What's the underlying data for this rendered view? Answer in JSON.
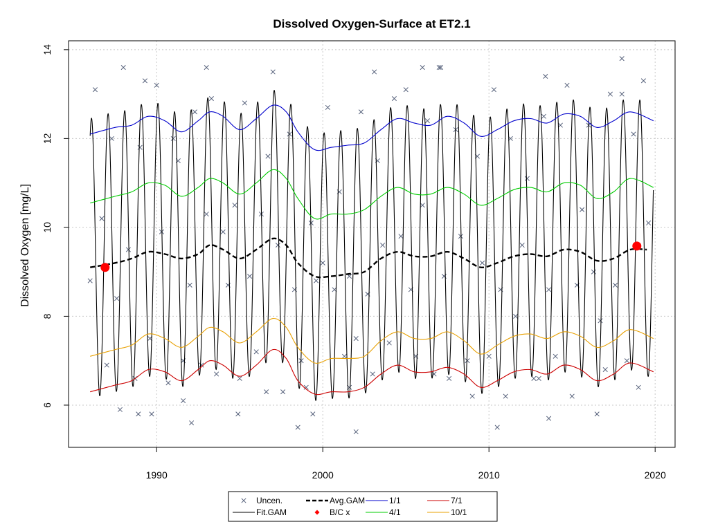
{
  "chart_data": {
    "type": "line",
    "title": "Dissolved Oxygen-Surface at ET2.1",
    "xlabel": "",
    "ylabel": "Dissolved Oxygen [mg/L]",
    "xlim": [
      1984.7,
      2021.2
    ],
    "ylim": [
      5.05,
      14.2
    ],
    "x_ticks": [
      1990,
      2000,
      2010,
      2020
    ],
    "y_ticks": [
      6,
      8,
      10,
      12,
      14
    ],
    "grid": true,
    "legend_position": "bottom-center",
    "legend": [
      {
        "label": "Uncen.",
        "key": "uncen",
        "symbol": "cross",
        "color": "#55607a"
      },
      {
        "label": "Fit.GAM",
        "key": "fit",
        "symbol": "line",
        "color": "#000000"
      },
      {
        "label": "Avg.GAM",
        "key": "avg",
        "symbol": "dashed",
        "color": "#000000"
      },
      {
        "label": "B/C x",
        "key": "bc",
        "symbol": "diamond",
        "color": "#ff0000"
      },
      {
        "label": "1/1",
        "key": "s1_1",
        "symbol": "line",
        "color": "#0000cc"
      },
      {
        "label": "4/1",
        "key": "s4_1",
        "symbol": "line",
        "color": "#00cc00"
      },
      {
        "label": "7/1",
        "key": "s7_1",
        "symbol": "line",
        "color": "#cc0000"
      },
      {
        "label": "10/1",
        "key": "s10_1",
        "symbol": "line",
        "color": "#e8a000"
      }
    ],
    "fit_gam": {
      "start": 1986.0,
      "end": 2019.9,
      "color": "#000000"
    },
    "avg_gam": {
      "color": "#000000",
      "x": [
        1986.0,
        1987.5,
        1988.5,
        1989.5,
        1990.5,
        1991.5,
        1992.5,
        1993.2,
        1994.0,
        1995.0,
        1996.0,
        1997.0,
        1997.8,
        1998.5,
        1999.5,
        2000.5,
        2001.5,
        2002.5,
        2003.5,
        2004.5,
        2005.5,
        2006.5,
        2007.5,
        2008.5,
        2009.5,
        2010.5,
        2011.5,
        2012.5,
        2013.5,
        2014.5,
        2015.5,
        2016.5,
        2017.5,
        2018.5,
        2019.5
      ],
      "y": [
        9.1,
        9.2,
        9.3,
        9.45,
        9.4,
        9.3,
        9.4,
        9.6,
        9.5,
        9.3,
        9.5,
        9.75,
        9.6,
        9.2,
        8.9,
        8.9,
        8.95,
        9.0,
        9.3,
        9.45,
        9.35,
        9.35,
        9.45,
        9.3,
        9.1,
        9.2,
        9.35,
        9.4,
        9.35,
        9.5,
        9.45,
        9.25,
        9.3,
        9.5,
        9.5
      ]
    },
    "series": [
      {
        "name": "1/1",
        "color": "#0000cc",
        "x": [
          1986.0,
          1987.5,
          1988.5,
          1989.5,
          1990.5,
          1991.5,
          1992.5,
          1993.2,
          1994.0,
          1995.0,
          1996.0,
          1997.0,
          1997.8,
          1998.5,
          1999.5,
          2000.5,
          2001.5,
          2002.5,
          2003.5,
          2004.5,
          2005.5,
          2006.5,
          2007.5,
          2008.5,
          2009.5,
          2010.5,
          2011.5,
          2012.5,
          2013.5,
          2014.5,
          2015.5,
          2016.5,
          2017.5,
          2018.5,
          2019.9
        ],
        "y": [
          12.1,
          12.25,
          12.3,
          12.5,
          12.4,
          12.15,
          12.4,
          12.6,
          12.5,
          12.2,
          12.45,
          12.75,
          12.6,
          12.15,
          11.75,
          11.8,
          11.85,
          11.9,
          12.2,
          12.45,
          12.35,
          12.3,
          12.5,
          12.35,
          12.05,
          12.2,
          12.4,
          12.45,
          12.35,
          12.55,
          12.5,
          12.25,
          12.4,
          12.6,
          12.4
        ]
      },
      {
        "name": "4/1",
        "color": "#00cc00",
        "x": [
          1986.0,
          1987.5,
          1988.5,
          1989.5,
          1990.5,
          1991.5,
          1992.5,
          1993.2,
          1994.0,
          1995.0,
          1996.0,
          1997.0,
          1997.8,
          1998.5,
          1999.5,
          2000.5,
          2001.5,
          2002.5,
          2003.5,
          2004.5,
          2005.5,
          2006.5,
          2007.5,
          2008.5,
          2009.5,
          2010.5,
          2011.5,
          2012.5,
          2013.5,
          2014.5,
          2015.5,
          2016.5,
          2017.5,
          2018.5,
          2019.9
        ],
        "y": [
          10.55,
          10.7,
          10.8,
          11.0,
          10.95,
          10.7,
          10.9,
          11.1,
          11.0,
          10.75,
          11.0,
          11.3,
          11.1,
          10.65,
          10.2,
          10.3,
          10.3,
          10.4,
          10.7,
          10.9,
          10.75,
          10.75,
          10.9,
          10.75,
          10.5,
          10.65,
          10.85,
          10.9,
          10.8,
          11.0,
          10.95,
          10.65,
          10.8,
          11.1,
          10.9
        ]
      },
      {
        "name": "7/1",
        "color": "#cc0000",
        "x": [
          1986.0,
          1987.5,
          1988.5,
          1989.5,
          1990.5,
          1991.5,
          1992.5,
          1993.2,
          1994.0,
          1995.0,
          1996.0,
          1997.0,
          1997.8,
          1998.5,
          1999.5,
          2000.5,
          2001.5,
          2002.5,
          2003.5,
          2004.5,
          2005.5,
          2006.5,
          2007.5,
          2008.5,
          2009.5,
          2010.5,
          2011.5,
          2012.5,
          2013.5,
          2014.5,
          2015.5,
          2016.5,
          2017.5,
          2018.5,
          2019.9
        ],
        "y": [
          6.3,
          6.45,
          6.55,
          6.8,
          6.75,
          6.55,
          6.8,
          7.0,
          6.9,
          6.65,
          6.9,
          7.25,
          7.05,
          6.55,
          6.25,
          6.3,
          6.3,
          6.4,
          6.7,
          6.9,
          6.75,
          6.75,
          6.85,
          6.7,
          6.4,
          6.55,
          6.75,
          6.8,
          6.7,
          6.9,
          6.8,
          6.55,
          6.7,
          6.95,
          6.75
        ]
      },
      {
        "name": "10/1",
        "color": "#e8a000",
        "x": [
          1986.0,
          1987.5,
          1988.5,
          1989.5,
          1990.5,
          1991.5,
          1992.5,
          1993.2,
          1994.0,
          1995.0,
          1996.0,
          1997.0,
          1997.8,
          1998.5,
          1999.5,
          2000.5,
          2001.5,
          2002.5,
          2003.5,
          2004.5,
          2005.5,
          2006.5,
          2007.5,
          2008.5,
          2009.5,
          2010.5,
          2011.5,
          2012.5,
          2013.5,
          2014.5,
          2015.5,
          2016.5,
          2017.5,
          2018.5,
          2019.9
        ],
        "y": [
          7.1,
          7.25,
          7.35,
          7.6,
          7.5,
          7.3,
          7.55,
          7.75,
          7.65,
          7.4,
          7.65,
          7.95,
          7.75,
          7.3,
          6.95,
          7.05,
          7.05,
          7.1,
          7.45,
          7.65,
          7.5,
          7.5,
          7.65,
          7.45,
          7.15,
          7.35,
          7.55,
          7.6,
          7.5,
          7.65,
          7.55,
          7.3,
          7.45,
          7.7,
          7.5
        ]
      }
    ],
    "bc_points": [
      {
        "x": 1986.9,
        "y": 9.1
      },
      {
        "x": 2018.9,
        "y": 9.58
      }
    ],
    "uncen_points": {
      "color": "#55607a",
      "x": [
        1986.0,
        1986.3,
        1986.7,
        1987.0,
        1987.3,
        1987.6,
        1988.0,
        1988.3,
        1988.7,
        1989.0,
        1989.3,
        1989.6,
        1990.0,
        1990.3,
        1990.7,
        1991.0,
        1991.3,
        1991.6,
        1992.0,
        1992.3,
        1992.7,
        1993.0,
        1993.3,
        1993.6,
        1994.0,
        1994.3,
        1994.7,
        1995.0,
        1995.3,
        1995.6,
        1996.0,
        1996.3,
        1996.7,
        1997.0,
        1997.3,
        1997.6,
        1998.0,
        1998.3,
        1998.7,
        1999.0,
        1999.3,
        1999.6,
        2000.0,
        2000.3,
        2000.7,
        2001.0,
        2001.3,
        2001.6,
        2002.0,
        2002.3,
        2002.7,
        2003.0,
        2003.3,
        2003.6,
        2004.0,
        2004.3,
        2004.7,
        2005.0,
        2005.3,
        2005.6,
        2006.0,
        2006.3,
        2006.7,
        2007.0,
        2007.3,
        2007.6,
        2008.0,
        2008.3,
        2008.7,
        2009.0,
        2009.3,
        2009.6,
        2010.0,
        2010.3,
        2010.7,
        2011.0,
        2011.3,
        2011.6,
        2012.0,
        2012.3,
        2012.7,
        2013.0,
        2013.3,
        2013.6,
        2014.0,
        2014.3,
        2014.7,
        2015.0,
        2015.3,
        2015.6,
        2016.0,
        2016.3,
        2016.7,
        2017.0,
        2017.3,
        2017.6,
        2018.0,
        2018.3,
        2018.7,
        2019.0,
        2019.3,
        2019.6,
        1987.8,
        1988.9,
        1992.1,
        1993.0,
        1996.6,
        2003.1,
        2006.0,
        2007.1,
        2013.4,
        2018.0,
        1989.7,
        1991.6,
        1994.9,
        1998.5,
        2002.0,
        2010.5,
        2013.6,
        2016.5,
        2001.6,
        1999.4
      ],
      "y": [
        8.8,
        13.1,
        10.2,
        6.9,
        12.0,
        8.4,
        13.6,
        9.5,
        6.6,
        11.8,
        13.3,
        7.5,
        13.2,
        9.9,
        6.5,
        12.0,
        11.5,
        7.0,
        8.7,
        12.6,
        6.9,
        10.3,
        12.9,
        6.7,
        9.9,
        8.7,
        10.5,
        6.6,
        12.8,
        8.9,
        7.2,
        10.3,
        11.6,
        13.5,
        9.6,
        6.3,
        12.1,
        8.6,
        7.0,
        6.4,
        10.1,
        8.8,
        9.2,
        12.7,
        8.6,
        10.8,
        7.1,
        8.9,
        7.5,
        12.6,
        8.5,
        6.7,
        11.5,
        9.6,
        7.4,
        12.9,
        9.8,
        13.1,
        8.6,
        7.1,
        10.5,
        12.4,
        6.7,
        13.6,
        8.9,
        6.6,
        12.2,
        9.8,
        7.0,
        6.2,
        11.6,
        9.2,
        7.1,
        13.1,
        8.6,
        6.2,
        12.0,
        8.0,
        9.6,
        11.1,
        6.6,
        6.6,
        12.5,
        8.6,
        7.1,
        12.3,
        13.2,
        6.2,
        8.7,
        10.4,
        12.3,
        9.0,
        7.9,
        6.8,
        13.0,
        8.7,
        13.8,
        7.0,
        12.1,
        6.4,
        13.3,
        10.1,
        5.9,
        5.8,
        5.6,
        13.6,
        6.3,
        13.5,
        13.6,
        13.6,
        13.4,
        13.0,
        5.8,
        6.1,
        5.8,
        5.5,
        5.4,
        5.5,
        5.7,
        5.8,
        6.4,
        5.8
      ]
    }
  }
}
